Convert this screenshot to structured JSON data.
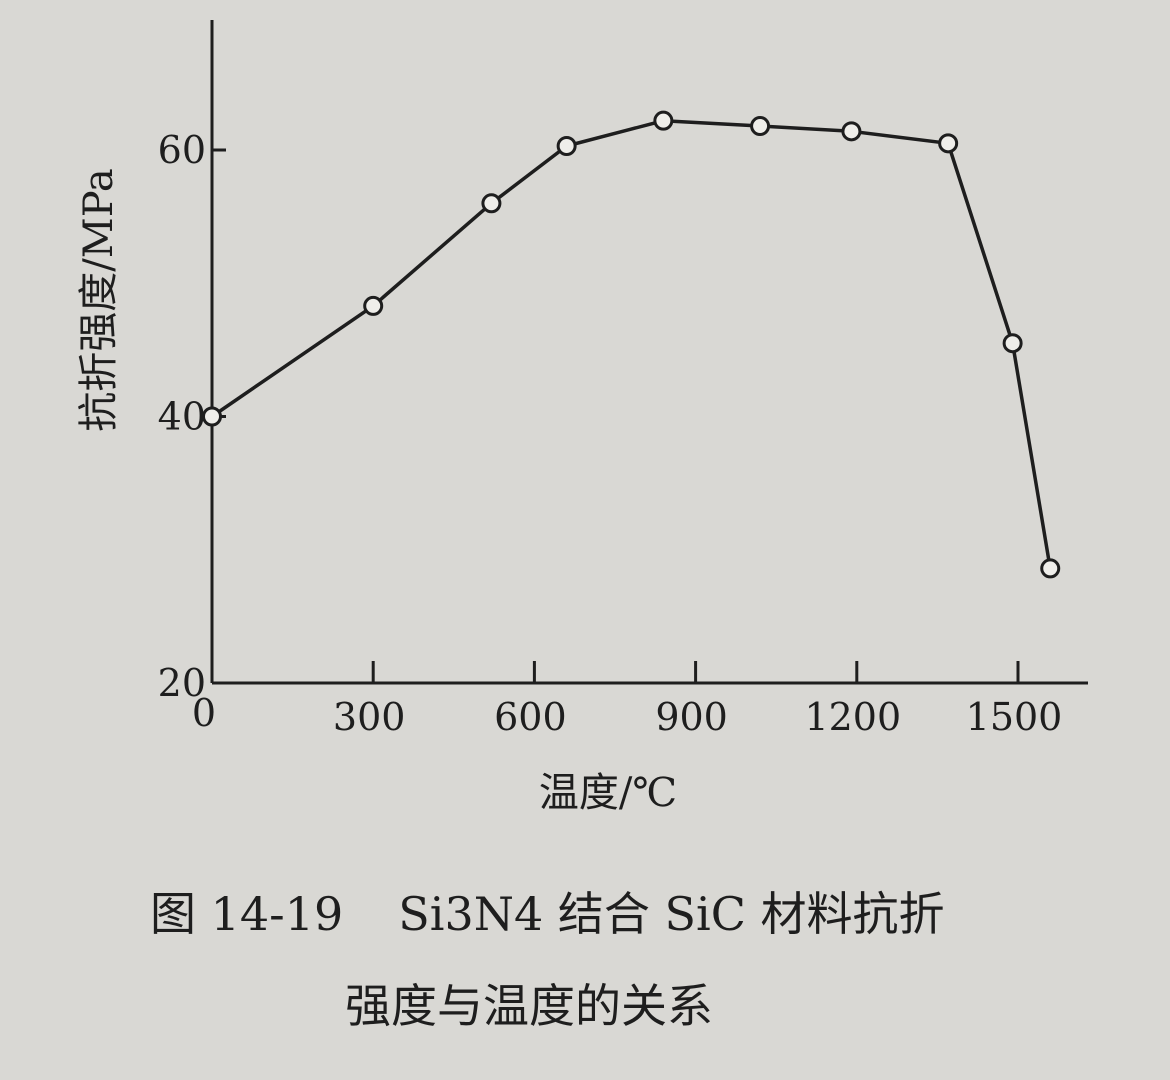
{
  "chart_data": {
    "type": "line",
    "title": "",
    "xlabel": "温度/℃",
    "ylabel": "抗折强度/MPa",
    "xlim": [
      0,
      1650
    ],
    "ylim": [
      20,
      70
    ],
    "x_origin_label": "0",
    "xticks": [
      300,
      600,
      900,
      1200,
      1500
    ],
    "xtick_labels": [
      "300",
      "600",
      "900",
      "1200",
      "1500"
    ],
    "yticks": [
      20,
      40,
      60
    ],
    "ytick_labels": [
      "20",
      "40",
      "60"
    ],
    "grid": false,
    "legend": "none",
    "series": [
      {
        "x": [
          0,
          300,
          520,
          660,
          840,
          1020,
          1190,
          1370,
          1490,
          1560
        ],
        "y": [
          40,
          48.3,
          56,
          60.3,
          62.2,
          61.8,
          61.4,
          60.5,
          45.5,
          28.6
        ]
      }
    ]
  },
  "caption": {
    "figure_number": "图 14-19",
    "line1": "Si3N4 结合 SiC 材料抗折",
    "line2": "强度与温度的关系"
  }
}
